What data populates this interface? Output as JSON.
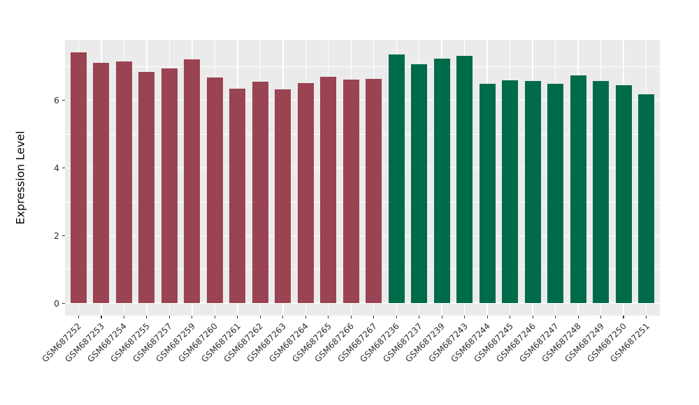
{
  "figure": {
    "background_color": "#FFFFFF",
    "panel_background_color": "#EBEBEB",
    "gridline_color": "#FFFFFF",
    "tick_color": "#333333",
    "axis_text_color": "#2E2E2E"
  },
  "chart_data": {
    "type": "bar",
    "title": "",
    "xlabel": "",
    "ylabel": "Expression Level",
    "ylim": [
      -0.37,
      7.79
    ],
    "yticks": [
      0,
      2,
      4,
      6
    ],
    "yticks_minor": [
      1,
      3,
      5,
      7
    ],
    "grid": true,
    "legend": false,
    "group_colors": {
      "group1": "#9A4352",
      "group2": "#006B4A"
    },
    "bars": [
      {
        "label": "GSM687252",
        "value": 7.42,
        "group": "group1"
      },
      {
        "label": "GSM687253",
        "value": 7.11,
        "group": "group1"
      },
      {
        "label": "GSM687254",
        "value": 7.14,
        "group": "group1"
      },
      {
        "label": "GSM687255",
        "value": 6.85,
        "group": "group1"
      },
      {
        "label": "GSM687257",
        "value": 6.95,
        "group": "group1"
      },
      {
        "label": "GSM687259",
        "value": 7.21,
        "group": "group1"
      },
      {
        "label": "GSM687260",
        "value": 6.68,
        "group": "group1"
      },
      {
        "label": "GSM687261",
        "value": 6.34,
        "group": "group1"
      },
      {
        "label": "GSM687262",
        "value": 6.55,
        "group": "group1"
      },
      {
        "label": "GSM687263",
        "value": 6.32,
        "group": "group1"
      },
      {
        "label": "GSM687264",
        "value": 6.51,
        "group": "group1"
      },
      {
        "label": "GSM687265",
        "value": 6.69,
        "group": "group1"
      },
      {
        "label": "GSM687266",
        "value": 6.61,
        "group": "group1"
      },
      {
        "label": "GSM687267",
        "value": 6.64,
        "group": "group1"
      },
      {
        "label": "GSM687236",
        "value": 7.35,
        "group": "group2"
      },
      {
        "label": "GSM687237",
        "value": 7.06,
        "group": "group2"
      },
      {
        "label": "GSM687239",
        "value": 7.23,
        "group": "group2"
      },
      {
        "label": "GSM687243",
        "value": 7.32,
        "group": "group2"
      },
      {
        "label": "GSM687244",
        "value": 6.49,
        "group": "group2"
      },
      {
        "label": "GSM687245",
        "value": 6.59,
        "group": "group2"
      },
      {
        "label": "GSM687246",
        "value": 6.57,
        "group": "group2"
      },
      {
        "label": "GSM687247",
        "value": 6.48,
        "group": "group2"
      },
      {
        "label": "GSM687248",
        "value": 6.74,
        "group": "group2"
      },
      {
        "label": "GSM687249",
        "value": 6.58,
        "group": "group2"
      },
      {
        "label": "GSM687250",
        "value": 6.45,
        "group": "group2"
      },
      {
        "label": "GSM687251",
        "value": 6.17,
        "group": "group2"
      }
    ]
  }
}
